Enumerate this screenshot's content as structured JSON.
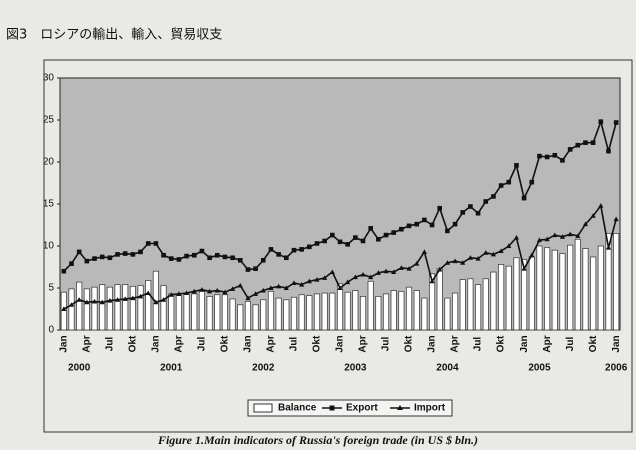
{
  "header": {
    "title": "図3　ロシアの輸出、輸入、貿易収支"
  },
  "chart_data": {
    "type": "combo",
    "caption": "Figure 1.Main indicators of Russia's foreign trade (in US $ bln.)",
    "categories": [
      "Jan",
      null,
      null,
      "Apr",
      null,
      null,
      "Jul",
      null,
      null,
      "Okt",
      null,
      null,
      "Jan",
      null,
      null,
      "Apr",
      null,
      null,
      "Jul",
      null,
      null,
      "Okt",
      null,
      null,
      "Jan",
      null,
      null,
      "Apr",
      null,
      null,
      "Jul",
      null,
      null,
      "Okt",
      null,
      null,
      "Jan",
      null,
      null,
      "Apr",
      null,
      null,
      "Jul",
      null,
      null,
      "Okt",
      null,
      null,
      "Jan",
      null,
      null,
      "Apr",
      null,
      null,
      "Jul",
      null,
      null,
      "Okt",
      null,
      null,
      "Jan",
      null,
      null,
      "Apr",
      null,
      null,
      "Jul",
      null,
      null,
      "Okt",
      null,
      null,
      "Jan"
    ],
    "years": [
      "2000",
      "2001",
      "2002",
      "2003",
      "2004",
      "2005",
      "2006"
    ],
    "series": [
      {
        "name": "Balance",
        "kind": "bar",
        "color": "#ffffff",
        "values": [
          4.5,
          4.9,
          5.7,
          4.9,
          5.1,
          5.4,
          5.1,
          5.4,
          5.4,
          5.2,
          5.3,
          5.9,
          7.0,
          5.3,
          4.3,
          4.1,
          4.4,
          4.3,
          4.6,
          4.0,
          4.2,
          4.2,
          3.7,
          3.0,
          3.4,
          3.0,
          3.6,
          4.6,
          3.8,
          3.6,
          3.9,
          4.2,
          4.1,
          4.3,
          4.4,
          4.4,
          5.5,
          4.5,
          4.7,
          4.0,
          5.8,
          4.0,
          4.3,
          4.7,
          4.6,
          5.1,
          4.7,
          3.8,
          6.7,
          7.3,
          3.8,
          4.4,
          6.0,
          6.1,
          5.4,
          6.1,
          6.9,
          7.8,
          7.6,
          8.6,
          8.4,
          8.7,
          10.0,
          9.8,
          9.5,
          9.1,
          10.1,
          10.8,
          9.7,
          8.7,
          10.0,
          11.5,
          11.5
        ]
      },
      {
        "name": "Export",
        "kind": "line-square",
        "color": "#111111",
        "values": [
          7.0,
          7.9,
          9.3,
          8.2,
          8.5,
          8.7,
          8.6,
          9.0,
          9.1,
          9.0,
          9.3,
          10.3,
          10.3,
          8.9,
          8.5,
          8.4,
          8.8,
          8.9,
          9.4,
          8.6,
          8.9,
          8.7,
          8.6,
          8.3,
          7.2,
          7.3,
          8.3,
          9.6,
          9.0,
          8.6,
          9.5,
          9.6,
          9.9,
          10.3,
          10.6,
          11.3,
          10.5,
          10.2,
          11.0,
          10.6,
          12.1,
          10.8,
          11.3,
          11.6,
          12.0,
          12.4,
          12.6,
          13.1,
          12.5,
          14.5,
          11.8,
          12.6,
          14.0,
          14.7,
          13.9,
          15.3,
          15.9,
          17.2,
          17.6,
          19.6,
          15.7,
          17.6,
          20.7,
          20.6,
          20.8,
          20.2,
          21.5,
          22.0,
          22.3,
          22.3,
          24.8,
          21.3,
          24.7
        ]
      },
      {
        "name": "Import",
        "kind": "line-triangle",
        "color": "#111111",
        "values": [
          2.5,
          3.0,
          3.6,
          3.3,
          3.4,
          3.3,
          3.5,
          3.6,
          3.7,
          3.8,
          4.0,
          4.4,
          3.3,
          3.6,
          4.2,
          4.3,
          4.4,
          4.6,
          4.8,
          4.6,
          4.7,
          4.5,
          4.9,
          5.3,
          3.8,
          4.3,
          4.7,
          5.0,
          5.2,
          5.0,
          5.6,
          5.4,
          5.8,
          6.0,
          6.2,
          6.9,
          5.0,
          5.7,
          6.3,
          6.6,
          6.3,
          6.8,
          7.0,
          6.9,
          7.4,
          7.3,
          7.9,
          9.3,
          5.8,
          7.2,
          8.0,
          8.2,
          8.0,
          8.6,
          8.5,
          9.2,
          9.0,
          9.4,
          10.0,
          11.0,
          7.3,
          8.9,
          10.7,
          10.8,
          11.3,
          11.1,
          11.4,
          11.2,
          12.6,
          13.6,
          14.8,
          9.8,
          13.2
        ]
      }
    ],
    "ylim": [
      0,
      30
    ],
    "yticks": [
      0,
      5,
      10,
      15,
      20,
      25,
      30
    ],
    "grid": false,
    "plot_background": "#b9b9b9",
    "legend": "bottom"
  }
}
